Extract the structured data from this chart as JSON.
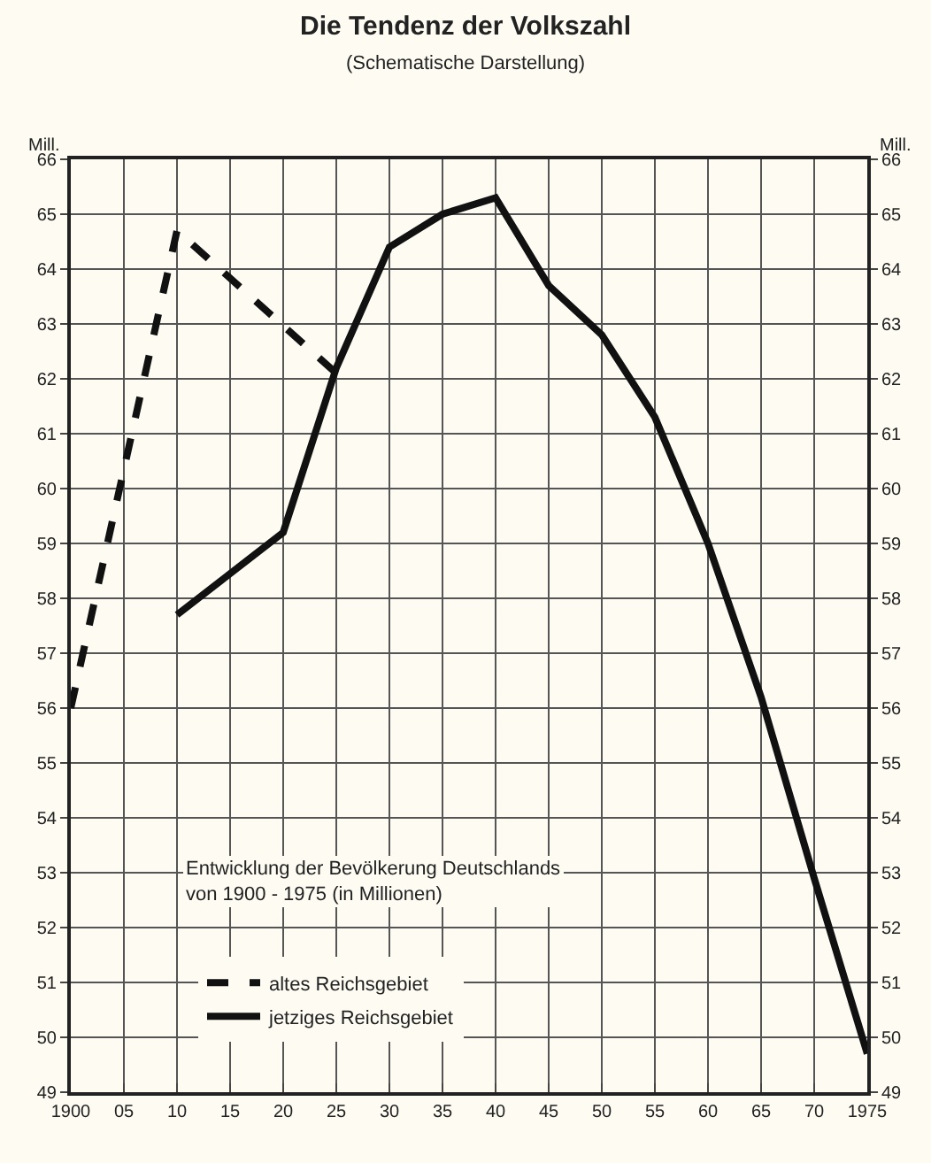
{
  "chart_data": {
    "type": "line",
    "title": "Die Tendenz der Volkszahl",
    "subtitle": "(Schematische Darstellung)",
    "ylabel": "Mill.",
    "y2label": "Mill.",
    "annotations": [
      "Entwicklung der Bevölkerung Deutschlands\nvon 1900 - 1975 (in Millionen)"
    ],
    "series": [
      {
        "name": "altes Reichsgebiet",
        "color": "#111111",
        "line_style": "dashed",
        "x": [
          1900,
          1910,
          1925
        ],
        "values": [
          56.0,
          64.7,
          62.1
        ]
      },
      {
        "name": "jetziges Reichsgebiet",
        "color": "#111111",
        "line_style": "solid",
        "x": [
          1910,
          1920,
          1925,
          1930,
          1935,
          1940,
          1945,
          1950,
          1955,
          1960,
          1965,
          1970,
          1975
        ],
        "values": [
          57.7,
          59.2,
          62.2,
          64.4,
          65.0,
          65.3,
          63.7,
          62.8,
          61.3,
          59.0,
          56.2,
          52.9,
          49.7
        ]
      }
    ],
    "xlim": [
      1900,
      1975
    ],
    "xticks": [
      1900,
      {
        "value": 1905,
        "label": "05"
      },
      {
        "value": 1910,
        "label": "10"
      },
      {
        "value": 1915,
        "label": "15"
      },
      {
        "value": 1920,
        "label": "20"
      },
      {
        "value": 1925,
        "label": "25"
      },
      {
        "value": 1930,
        "label": "30"
      },
      {
        "value": 1935,
        "label": "35"
      },
      {
        "value": 1940,
        "label": "40"
      },
      {
        "value": 1945,
        "label": "45"
      },
      {
        "value": 1950,
        "label": "50"
      },
      {
        "value": 1955,
        "label": "55"
      },
      {
        "value": 1960,
        "label": "60"
      },
      {
        "value": 1965,
        "label": "65"
      },
      {
        "value": 1970,
        "label": "70"
      },
      1975
    ],
    "ylim": [
      49,
      66
    ],
    "yticks": [
      49,
      50,
      51,
      52,
      53,
      54,
      55,
      56,
      57,
      58,
      59,
      60,
      61,
      62,
      63,
      64,
      65,
      66
    ],
    "y2lim": [
      49,
      66
    ],
    "y2ticks": [
      49,
      50,
      51,
      52,
      53,
      54,
      55,
      56,
      57,
      58,
      59,
      60,
      61,
      62,
      63,
      64,
      65,
      66
    ],
    "grid": true,
    "legend": "bottom left",
    "marker": "none"
  }
}
